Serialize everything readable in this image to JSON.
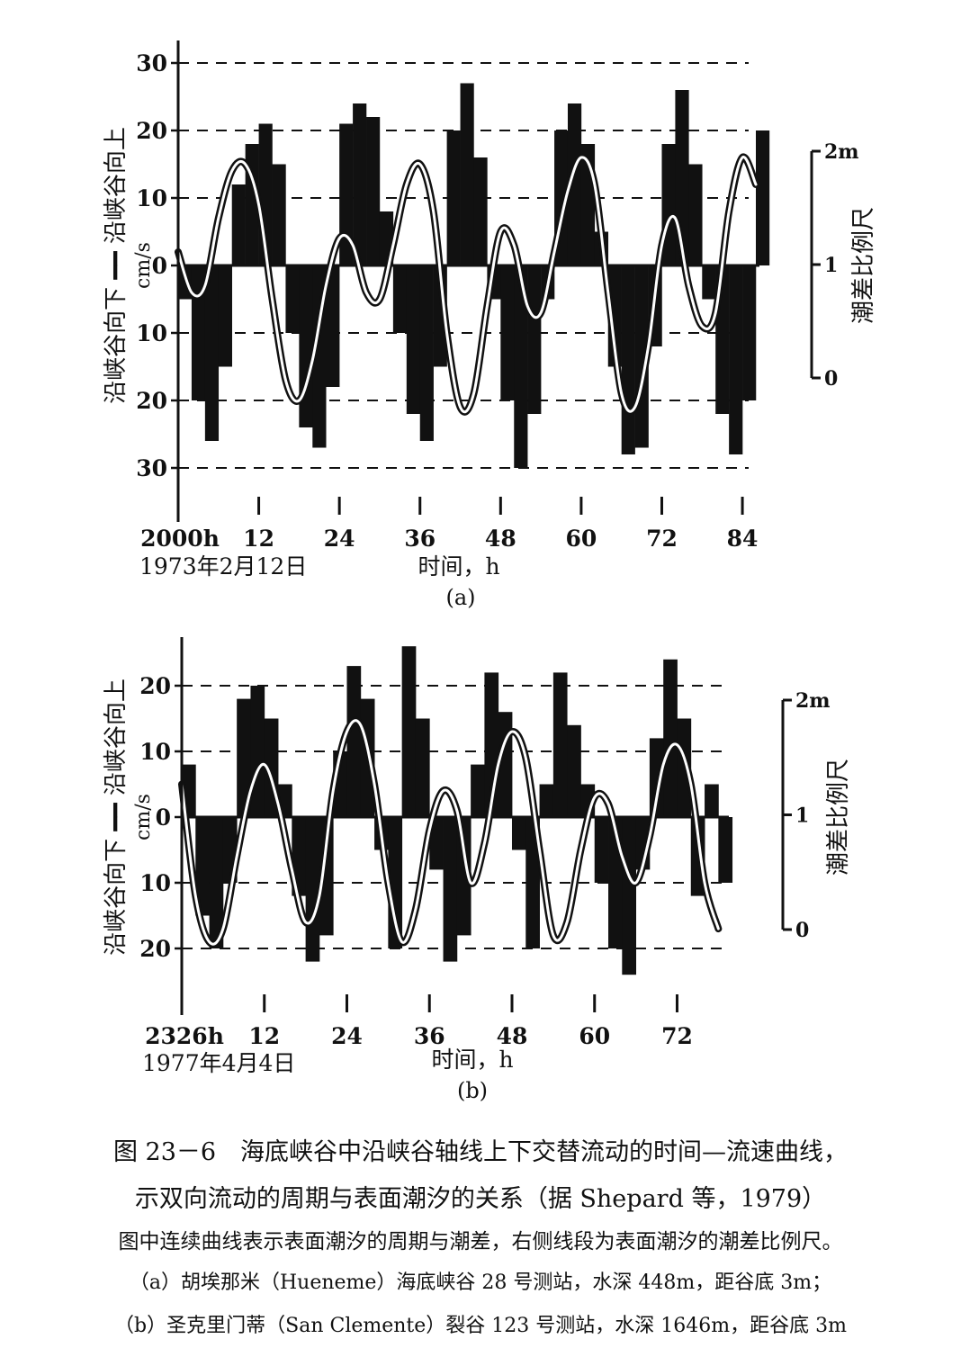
{
  "chart_data": [
    {
      "type": "bar",
      "panel_label": "(a)",
      "ylabel": "沿峡谷向下 ━━ 沿峡谷向上",
      "yunit": "cm/s",
      "xlabel": "时间，h",
      "start_time": "2000h",
      "start_date": "1973年2月12日",
      "ylim": [
        -30,
        30
      ],
      "xlim": [
        0,
        86
      ],
      "y_ticks": [
        {
          "v": 30,
          "label": "30"
        },
        {
          "v": 20,
          "label": "20"
        },
        {
          "v": 10,
          "label": "10"
        },
        {
          "v": 0,
          "label": "0"
        },
        {
          "v": -10,
          "label": "10"
        },
        {
          "v": -20,
          "label": "20"
        },
        {
          "v": -30,
          "label": "30"
        }
      ],
      "x_ticks": [
        "12",
        "24",
        "36",
        "48",
        "60",
        "72",
        "84"
      ],
      "x_tick_values": [
        12,
        24,
        36,
        48,
        60,
        72,
        84
      ],
      "tide_scale": {
        "label": "潮差比例尺",
        "ticks": [
          "2m",
          "1",
          "0"
        ]
      },
      "grid": "dashed horizontal at every 10 cm/s",
      "series": [
        {
          "kind": "current_velocity_bars",
          "x": [
            0,
            2,
            4,
            6,
            8,
            10,
            12,
            14,
            16,
            18,
            20,
            22,
            24,
            26,
            28,
            30,
            32,
            34,
            36,
            38,
            40,
            42,
            44,
            46,
            48,
            50,
            52,
            54,
            56,
            58,
            60,
            62,
            64,
            66,
            68,
            70,
            72,
            74,
            76,
            78,
            80,
            82,
            84,
            86
          ],
          "y": [
            -5,
            -20,
            -26,
            -15,
            12,
            18,
            21,
            15,
            -10,
            -24,
            -27,
            -18,
            21,
            24,
            22,
            8,
            -10,
            -22,
            -26,
            -15,
            20,
            27,
            16,
            -5,
            -20,
            -30,
            -22,
            -5,
            20,
            24,
            18,
            5,
            -15,
            -28,
            -27,
            -12,
            18,
            26,
            15,
            -5,
            -22,
            -28,
            -20,
            20
          ]
        },
        {
          "kind": "surface_tide_curve",
          "x": [
            0,
            2,
            4,
            6,
            8,
            10,
            12,
            14,
            16,
            18,
            20,
            22,
            24,
            26,
            28,
            30,
            32,
            34,
            36,
            38,
            40,
            42,
            44,
            46,
            48,
            50,
            52,
            54,
            56,
            58,
            60,
            62,
            64,
            66,
            68,
            70,
            72,
            74,
            76,
            78,
            80,
            82,
            84,
            86
          ],
          "y": [
            2,
            -4,
            -3,
            7,
            14,
            15,
            9,
            -5,
            -17,
            -20,
            -14,
            -3,
            4,
            3,
            -4,
            -5,
            3,
            12,
            15,
            8,
            -10,
            -21,
            -19,
            -6,
            5,
            3,
            -6,
            -7,
            2,
            11,
            16,
            12,
            -4,
            -19,
            -21,
            -12,
            3,
            7,
            -3,
            -9,
            -7,
            8,
            16,
            12
          ]
        }
      ]
    },
    {
      "type": "bar",
      "panel_label": "(b)",
      "ylabel": "沿峡谷向下 ━━ 沿峡谷向上",
      "yunit": "cm/s",
      "xlabel": "时间，h",
      "start_time": "2326h",
      "start_date": "1977年4月4日",
      "ylim": [
        -25,
        25
      ],
      "xlim": [
        0,
        79
      ],
      "y_ticks": [
        {
          "v": 20,
          "label": "20"
        },
        {
          "v": 10,
          "label": "10"
        },
        {
          "v": 0,
          "label": "0"
        },
        {
          "v": -10,
          "label": "10"
        },
        {
          "v": -20,
          "label": "20"
        }
      ],
      "x_ticks": [
        "12",
        "24",
        "36",
        "48",
        "60",
        "72"
      ],
      "x_tick_values": [
        12,
        24,
        36,
        48,
        60,
        72
      ],
      "tide_scale": {
        "label": "潮差比例尺",
        "ticks": [
          "2m",
          "1",
          "0"
        ]
      },
      "grid": "dashed horizontal at every 10 cm/s",
      "series": [
        {
          "kind": "current_velocity_bars",
          "x": [
            0,
            2,
            4,
            6,
            8,
            10,
            12,
            14,
            16,
            18,
            20,
            22,
            24,
            26,
            28,
            30,
            32,
            34,
            36,
            38,
            40,
            42,
            44,
            46,
            48,
            50,
            52,
            54,
            56,
            58,
            60,
            62,
            64,
            66,
            68,
            70,
            72,
            74,
            76,
            78
          ],
          "y": [
            8,
            -15,
            -20,
            -10,
            18,
            20,
            15,
            5,
            -12,
            -22,
            -18,
            10,
            23,
            18,
            -5,
            -20,
            26,
            15,
            -8,
            -22,
            -18,
            8,
            22,
            16,
            -5,
            -20,
            5,
            22,
            14,
            5,
            -10,
            -20,
            -24,
            -8,
            12,
            24,
            15,
            -12,
            5,
            -10
          ]
        },
        {
          "kind": "surface_tide_curve",
          "x": [
            0,
            2,
            4,
            6,
            8,
            10,
            12,
            14,
            16,
            18,
            20,
            22,
            24,
            26,
            28,
            30,
            32,
            34,
            36,
            38,
            40,
            42,
            44,
            46,
            48,
            50,
            52,
            54,
            56,
            58,
            60,
            62,
            64,
            66,
            68,
            70,
            72,
            74,
            76,
            78
          ],
          "y": [
            5,
            -12,
            -19,
            -17,
            -6,
            4,
            8,
            2,
            -8,
            -16,
            -12,
            4,
            13,
            14,
            5,
            -10,
            -19,
            -14,
            -2,
            4,
            1,
            -10,
            -4,
            8,
            13,
            9,
            -5,
            -18,
            -16,
            -5,
            3,
            2,
            -6,
            -10,
            -3,
            8,
            11,
            5,
            -10,
            -17
          ]
        }
      ]
    }
  ],
  "caption": {
    "title": "图 23－6　海底峡谷中沿峡谷轴线上下交替流动的时间—流速曲线，",
    "subtitle": "示双向流动的周期与表面潮汐的关系（据 Shepard 等，1979）",
    "note": "图中连续曲线表示表面潮汐的周期与潮差，右侧线段为表面潮汐的潮差比例尺。",
    "a": "（a）胡埃那米（Hueneme）海底峡谷 28 号测站，水深 448m，距谷底 3m；",
    "b": "（b）圣克里门蒂（San Clemente）裂谷 123 号测站，水深 1646m，距谷底 3m"
  }
}
